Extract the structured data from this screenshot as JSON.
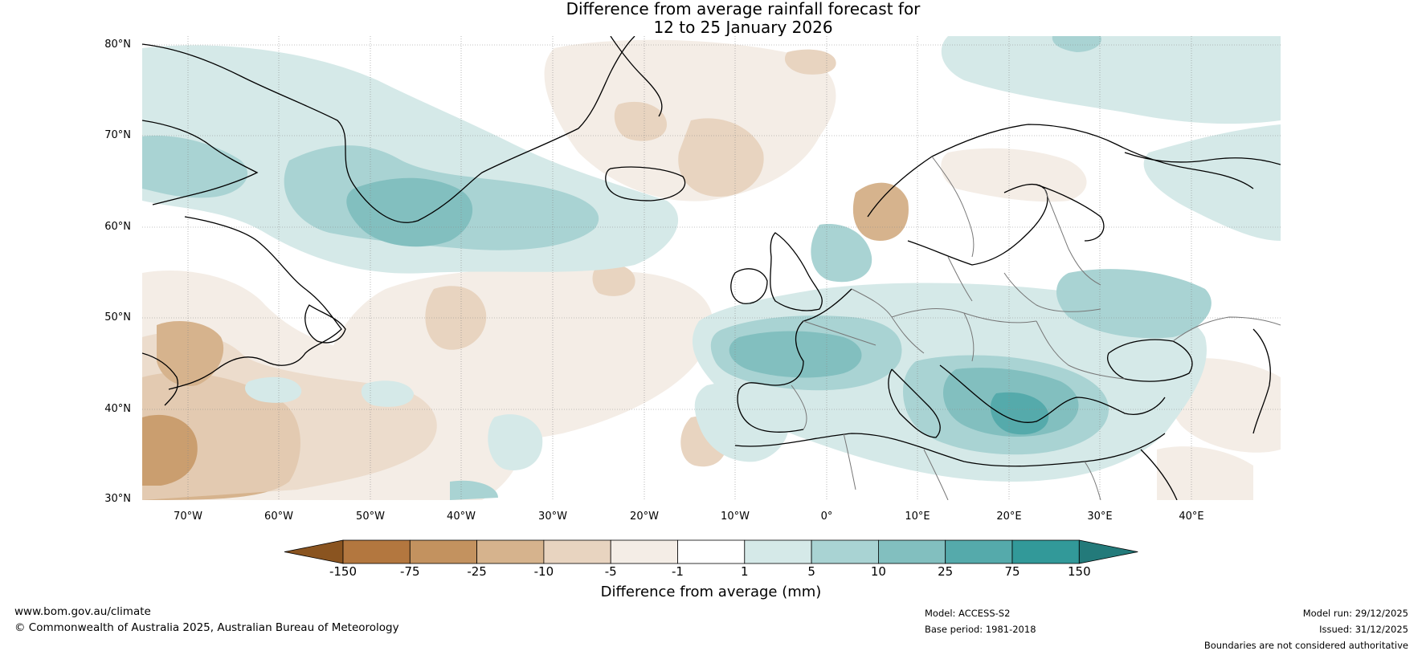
{
  "title": {
    "line1": "Difference from average rainfall forecast for",
    "line2": "12 to 25 January 2026"
  },
  "map": {
    "lat_labels": [
      "80°N",
      "70°N",
      "60°N",
      "50°N",
      "40°N",
      "30°N"
    ],
    "lon_labels": [
      "70°W",
      "60°W",
      "50°W",
      "40°W",
      "30°W",
      "20°W",
      "10°W",
      "0°",
      "10°E",
      "20°E",
      "30°E",
      "40°E"
    ],
    "regions": [
      {
        "name": "labrador-sea-wet-anomaly",
        "category": "5 to 10"
      },
      {
        "name": "south-greenland-wet-core",
        "category": "10 to 25"
      },
      {
        "name": "western-europe-wet-anomaly",
        "category": "10 to 25"
      },
      {
        "name": "eastern-mediterranean-wet-anomaly",
        "category": "25 to 75"
      },
      {
        "name": "western-atlantic-dry-anomaly",
        "category": "-25 to -10"
      },
      {
        "name": "norway-coast-dry-anomaly",
        "category": "-25 to -10"
      }
    ]
  },
  "colorbar": {
    "colors": [
      "#8a5420",
      "#b3773f",
      "#c3925f",
      "#d6b38d",
      "#e8d4c0",
      "#f4ede6",
      "#ffffff",
      "#d5e9e8",
      "#a9d3d3",
      "#82bfbf",
      "#55aaab",
      "#329999",
      "#237a7a"
    ],
    "ticks": [
      "-150",
      "-75",
      "-25",
      "-10",
      "-5",
      "-1",
      "1",
      "5",
      "10",
      "25",
      "75",
      "150"
    ],
    "label": "Difference from average (mm)"
  },
  "footer": {
    "website": "www.bom.gov.au/climate",
    "copyright": "© Commonwealth of Australia 2025, Australian Bureau of Meteorology",
    "model": "Model: ACCESS-S2",
    "base_period": "Base period: 1981-2018",
    "model_run": "Model run: 29/12/2025",
    "issued": "Issued: 31/12/2025",
    "disclaimer": "Boundaries are not considered authoritative"
  }
}
